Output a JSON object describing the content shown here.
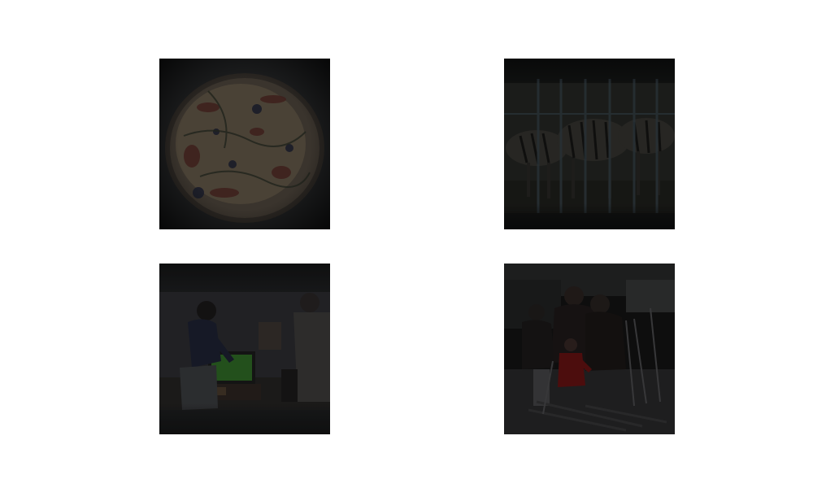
{
  "figure": {
    "background": "#ffffff",
    "panels": [
      {
        "subject": "pizza",
        "tone": "#1a1816"
      },
      {
        "subject": "zebras-behind-bars",
        "tone": "#141514"
      },
      {
        "subject": "people-playing-video-game",
        "tone": "#18191b"
      },
      {
        "subject": "family-with-skis-in-snow",
        "tone": "#121212"
      }
    ]
  }
}
